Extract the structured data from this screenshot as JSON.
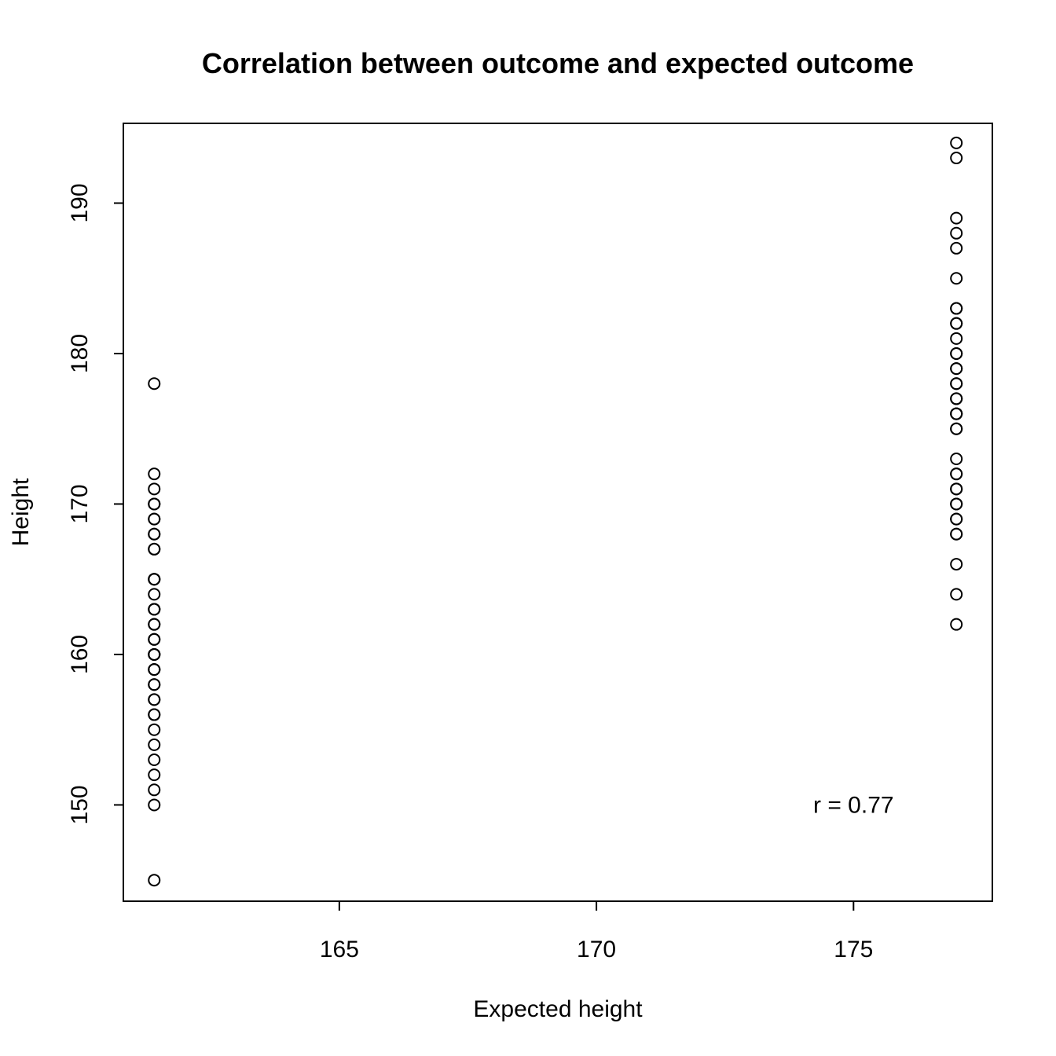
{
  "chart_data": {
    "type": "scatter",
    "title": "Correlation between outcome and expected outcome",
    "xlabel": "Expected height",
    "ylabel": "Height",
    "xlim": [
      160.8,
      177.7
    ],
    "ylim": [
      143.6,
      195.3
    ],
    "xticks": [
      165,
      170,
      175
    ],
    "yticks": [
      150,
      160,
      170,
      180,
      190
    ],
    "grid": false,
    "annotation": "r = 0.77",
    "annotation_pos": [
      175,
      150
    ],
    "series": [
      {
        "x": [
          161.4,
          161.4,
          161.4,
          161.4,
          161.4,
          161.4,
          161.4,
          161.4,
          161.4,
          161.4,
          161.4,
          161.4,
          161.4,
          161.4,
          161.4,
          161.4,
          161.4,
          161.4,
          161.4,
          161.4,
          161.4,
          161.4,
          161.4,
          161.4,
          161.4,
          161.4,
          161.4,
          161.4,
          161.4,
          161.4,
          161.4,
          161.4,
          161.4,
          161.4,
          161.4,
          161.4,
          161.4,
          161.4,
          161.4,
          161.4,
          161.4
        ],
        "y": [
          178,
          172,
          171,
          170,
          170,
          169,
          169,
          168,
          168,
          167,
          167,
          165,
          165,
          165,
          164,
          163,
          163,
          162,
          161,
          161,
          160,
          160,
          160,
          159,
          159,
          158,
          158,
          157,
          157,
          156,
          155,
          154,
          153,
          152,
          151,
          150,
          145,
          162,
          163,
          159,
          156
        ]
      },
      {
        "x": [
          177,
          177,
          177,
          177,
          177,
          177,
          177,
          177,
          177,
          177,
          177,
          177,
          177,
          177,
          177,
          177,
          177,
          177,
          177,
          177,
          177,
          177,
          177,
          177,
          177,
          177,
          177,
          177,
          177,
          177,
          177,
          177,
          177,
          177,
          177,
          177,
          177,
          177
        ],
        "y": [
          194,
          193,
          189,
          188,
          187,
          185,
          183,
          183,
          182,
          182,
          181,
          180,
          180,
          179,
          178,
          178,
          177,
          177,
          176,
          176,
          175,
          175,
          173,
          172,
          172,
          171,
          171,
          170,
          169,
          169,
          168,
          168,
          166,
          164,
          162,
          179,
          176,
          170
        ]
      }
    ]
  }
}
